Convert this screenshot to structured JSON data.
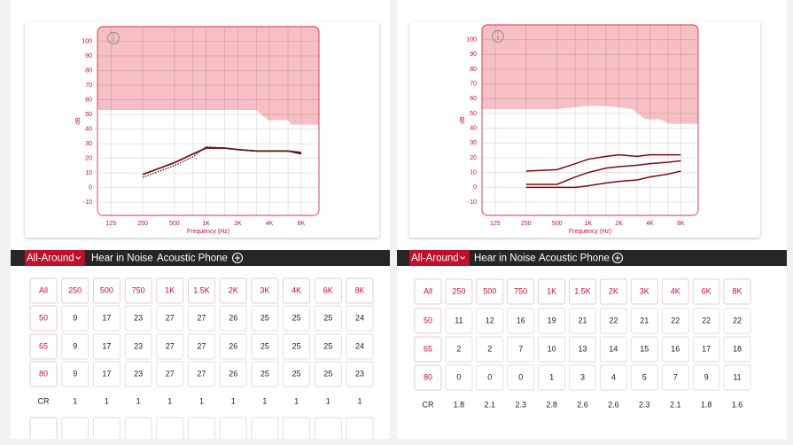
{
  "chart_data": [
    {
      "type": "line",
      "x_label": "Frequency (Hz)",
      "y_label": "dB",
      "x_scale": "log",
      "xlim": [
        93,
        11800
      ],
      "ylim": [
        -19,
        110
      ],
      "xticks": [
        125,
        250,
        500,
        {
          "value": 1000,
          "label": "1K"
        },
        {
          "value": 2000,
          "label": "2K"
        },
        {
          "value": 4000,
          "label": "4K"
        },
        {
          "value": 8000,
          "label": "8K"
        }
      ],
      "x_minor_grid": [
        750,
        1500,
        3000,
        6000
      ],
      "yticks": [
        -10,
        0,
        10,
        20,
        30,
        40,
        50,
        60,
        70,
        80,
        90,
        100
      ],
      "grid": true,
      "x": [
        250,
        500,
        750,
        1000,
        1500,
        2000,
        3000,
        4000,
        6000,
        8000
      ],
      "series": [
        {
          "color": "#7a0c0c",
          "values": [
            9,
            17,
            23,
            27,
            27,
            26,
            25,
            25,
            25,
            24
          ]
        },
        {
          "color": "#7a0c0c",
          "values": [
            9,
            17,
            23,
            27,
            27,
            26,
            25,
            25,
            25,
            24
          ]
        },
        {
          "color": "#7a0c0c",
          "values": [
            9,
            17,
            23,
            27,
            27,
            26,
            25,
            25,
            25,
            23
          ]
        },
        {
          "color": "#222222",
          "dash": true,
          "values": [
            7,
            15,
            21,
            28,
            27,
            26,
            25,
            25,
            25,
            23
          ]
        }
      ],
      "shaded_region": {
        "color": "#f6bfc3",
        "x": [
          93,
          3000,
          3900,
          6000,
          6500,
          11800
        ],
        "values": [
          53,
          53,
          46,
          46,
          43,
          43
        ]
      }
    },
    {
      "type": "line",
      "x_label": "Frequency (Hz)",
      "y_label": "dB",
      "x_scale": "log",
      "xlim": [
        93,
        11800
      ],
      "ylim": [
        -19,
        110
      ],
      "xticks": [
        125,
        250,
        500,
        {
          "value": 1000,
          "label": "1K"
        },
        {
          "value": 2000,
          "label": "2K"
        },
        {
          "value": 4000,
          "label": "4K"
        },
        {
          "value": 8000,
          "label": "8K"
        }
      ],
      "x_minor_grid": [
        750,
        1500,
        3000,
        6000
      ],
      "yticks": [
        -10,
        0,
        10,
        20,
        30,
        40,
        50,
        60,
        70,
        80,
        90,
        100
      ],
      "grid": true,
      "x": [
        250,
        500,
        750,
        1000,
        1500,
        2000,
        3000,
        4000,
        6000,
        8000
      ],
      "series": [
        {
          "color": "#7a0c0c",
          "values": [
            11,
            12,
            16,
            19,
            21,
            22,
            21,
            22,
            22,
            22
          ]
        },
        {
          "color": "#7a0c0c",
          "values": [
            2,
            2,
            7,
            10,
            13,
            14,
            15,
            16,
            17,
            18
          ]
        },
        {
          "color": "#7a0c0c",
          "values": [
            0,
            0,
            0,
            1,
            3,
            4,
            5,
            7,
            9,
            11
          ]
        }
      ],
      "shaded_region": {
        "color": "#f6bfc3",
        "x": [
          93,
          500,
          1000,
          1500,
          2000,
          2700,
          3600,
          5000,
          6200,
          11800
        ],
        "values": [
          53,
          53,
          55,
          55,
          54,
          53,
          46,
          46,
          43,
          43
        ]
      }
    }
  ],
  "panels": [
    {
      "tabs": [
        "All-Around",
        "Hear in Noise",
        "Acoustic Phone"
      ],
      "active_tab": 0,
      "table": {
        "header": [
          "All",
          "250",
          "500",
          "750",
          "1K",
          "1.5K",
          "2K",
          "3K",
          "4K",
          "6K",
          "8K"
        ],
        "rows": [
          {
            "label": "50",
            "values": [
              9,
              17,
              23,
              27,
              27,
              26,
              25,
              25,
              25,
              24
            ]
          },
          {
            "label": "65",
            "values": [
              9,
              17,
              23,
              27,
              27,
              26,
              25,
              25,
              25,
              24
            ]
          },
          {
            "label": "80",
            "values": [
              9,
              17,
              23,
              27,
              27,
              26,
              25,
              25,
              25,
              23
            ]
          },
          {
            "label": "CR",
            "values": [
              1,
              1,
              1,
              1,
              1,
              1,
              1,
              1,
              1,
              1
            ]
          }
        ]
      }
    },
    {
      "tabs": [
        "All-Around",
        "Hear in Noise",
        "Acoustic Phone"
      ],
      "active_tab": 0,
      "table": {
        "header": [
          "All",
          "250",
          "500",
          "750",
          "1K",
          "1.5K",
          "2K",
          "3K",
          "4K",
          "6K",
          "8K"
        ],
        "rows": [
          {
            "label": "50",
            "values": [
              11,
              12,
              16,
              19,
              21,
              22,
              21,
              22,
              22,
              22
            ]
          },
          {
            "label": "65",
            "values": [
              2,
              2,
              7,
              10,
              13,
              14,
              15,
              16,
              17,
              18
            ]
          },
          {
            "label": "80",
            "values": [
              0,
              0,
              0,
              1,
              3,
              4,
              5,
              7,
              9,
              11
            ]
          },
          {
            "label": "CR",
            "values": [
              1.8,
              2.1,
              2.3,
              2.8,
              2.6,
              2.6,
              2.3,
              2.1,
              1.8,
              1.6
            ]
          }
        ]
      }
    }
  ]
}
